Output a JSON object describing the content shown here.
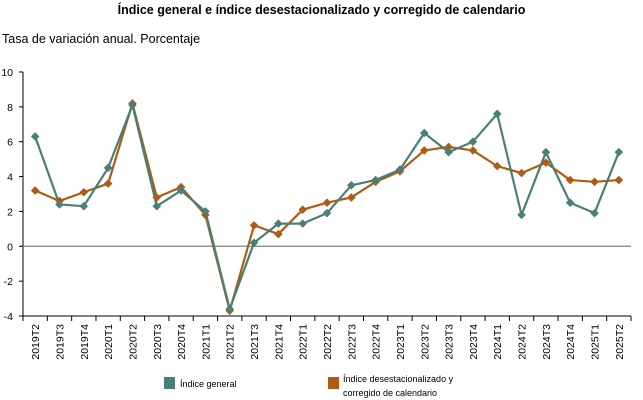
{
  "chart_data": {
    "type": "line",
    "title": "Índice general e índice desestacionalizado y corregido de calendario",
    "subtitle": "Tasa de variación anual. Porcentaje",
    "categories": [
      "2019T2",
      "2019T3",
      "2019T4",
      "2020T1",
      "2020T2",
      "2020T3",
      "2020T4",
      "2021T1",
      "2021T2",
      "2021T3",
      "2021T4",
      "2022T1",
      "2022T2",
      "2022T3",
      "2022T4",
      "2023T1",
      "2023T2",
      "2023T3",
      "2023T4",
      "2024T1",
      "2024T2",
      "2024T3",
      "2024T4",
      "2025T1",
      "2025T2"
    ],
    "ylim": [
      -4,
      10
    ],
    "yticks": [
      -4,
      -2,
      0,
      2,
      4,
      6,
      8,
      10
    ],
    "series": [
      {
        "name": "Índice general",
        "color": "#4a7f78",
        "values": [
          6.3,
          2.4,
          2.3,
          4.5,
          8.1,
          2.3,
          3.2,
          2.0,
          -3.6,
          0.2,
          1.3,
          1.3,
          1.9,
          3.5,
          3.8,
          4.4,
          6.5,
          5.4,
          6.0,
          7.6,
          1.8,
          5.4,
          2.5,
          1.9,
          5.4
        ]
      },
      {
        "name": "Índice desestacionalizado y corregido de calendario",
        "color": "#b15a14",
        "values": [
          3.2,
          2.6,
          3.1,
          3.6,
          8.2,
          2.8,
          3.4,
          1.8,
          -3.7,
          1.2,
          0.7,
          2.1,
          2.5,
          2.8,
          3.7,
          4.3,
          5.5,
          5.7,
          5.5,
          4.6,
          4.2,
          4.8,
          3.8,
          3.7,
          3.8
        ]
      }
    ],
    "legend": [
      {
        "label": "Índice general",
        "color": "#4a7f78"
      },
      {
        "label_line1": "Índice desestacionalizado y",
        "label_line2": "corregido de calendario",
        "color": "#b15a14"
      }
    ]
  }
}
